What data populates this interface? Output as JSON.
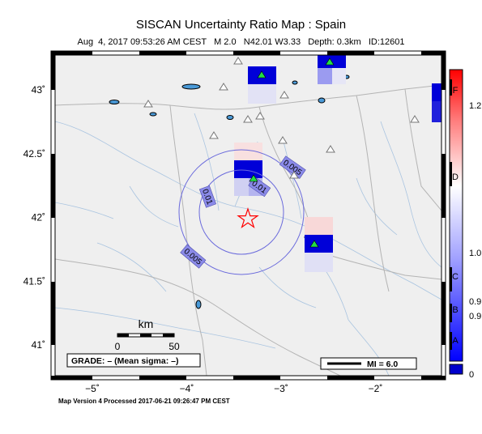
{
  "title": "SISCAN Uncertainty Ratio Map : Spain",
  "subtitle": "Aug  4, 2017 09:53:26 AM CEST   M 2.0   N42.01 W3.33   Depth: 0.3km   ID:12601",
  "footer": "Map Version 4 Processed 2017-06-21 09:26:47 PM CEST",
  "lon_ticks": [
    {
      "label": "−5˚",
      "value": -5
    },
    {
      "label": "−4˚",
      "value": -4
    },
    {
      "label": "−3˚",
      "value": -3
    },
    {
      "label": "−2˚",
      "value": -2
    }
  ],
  "lat_ticks": [
    {
      "label": "43˚",
      "value": 43
    },
    {
      "label": "42.5˚",
      "value": 42.5
    },
    {
      "label": "42˚",
      "value": 42
    },
    {
      "label": "41.5˚",
      "value": 41.5
    },
    {
      "label": "41˚",
      "value": 41
    }
  ],
  "contours": [
    {
      "label": "0.01",
      "label2": "0.01"
    },
    {
      "label": "0.005",
      "label2": "0.005"
    }
  ],
  "scale_bar": {
    "unit": "km",
    "start": "0",
    "end": "50"
  },
  "grade_box": "GRADE: – (Mean sigma: –)",
  "mi_legend": "MI = 6.0",
  "colorbar": {
    "letters": [
      "F",
      "D",
      "C",
      "B",
      "A"
    ],
    "values": [
      "1.2",
      "1.0",
      "0.9",
      "0.9",
      "0"
    ]
  },
  "colors": {
    "accent_blue": "#0000cc",
    "accent_red": "#ff0000",
    "land": "#efefef",
    "contour": "#6a6adc"
  },
  "epicenter": {
    "lat": 42.01,
    "lon": -3.33
  }
}
